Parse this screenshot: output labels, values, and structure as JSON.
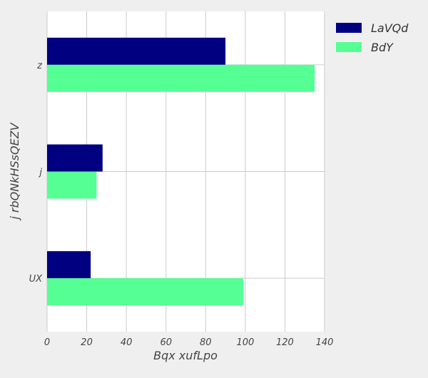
{
  "chart_data": {
    "type": "bar",
    "orientation": "horizontal",
    "categories": [
      "z",
      "j",
      "UX"
    ],
    "series": [
      {
        "name": "LaVQd",
        "color": "#000080",
        "values": [
          90,
          28,
          22
        ]
      },
      {
        "name": "BdY",
        "color": "#55ff94",
        "values": [
          135,
          25,
          99
        ]
      }
    ],
    "xlabel": "Bqx xufLpo",
    "ylabel": "j rbQNkHSsQEZV",
    "xlim": [
      0,
      140
    ],
    "xticks": [
      0,
      20,
      40,
      60,
      80,
      100,
      120,
      140
    ],
    "grid": true,
    "legend": "top-right, outside plot"
  }
}
